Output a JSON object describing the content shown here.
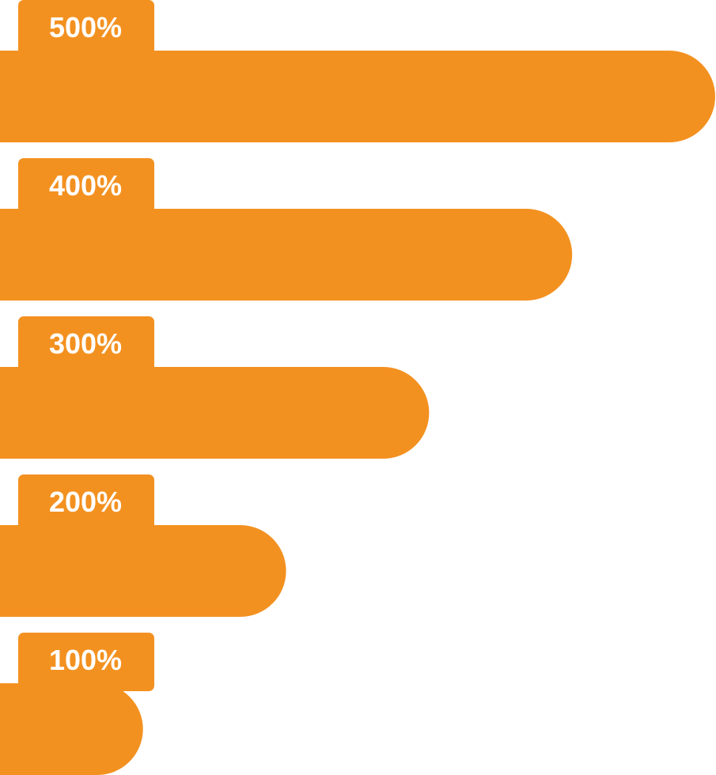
{
  "chart_data": {
    "type": "bar",
    "orientation": "horizontal",
    "categories": [
      "500%",
      "400%",
      "300%",
      "200%",
      "100%"
    ],
    "values": [
      500,
      400,
      300,
      200,
      100
    ],
    "title": "",
    "xlabel": "",
    "ylabel": "",
    "xlim": [
      0,
      500
    ],
    "grid": false,
    "legend": "none",
    "colors": {
      "bar": "#F39120",
      "label": "#FFFFFF",
      "background": "#FFFFFF"
    }
  }
}
